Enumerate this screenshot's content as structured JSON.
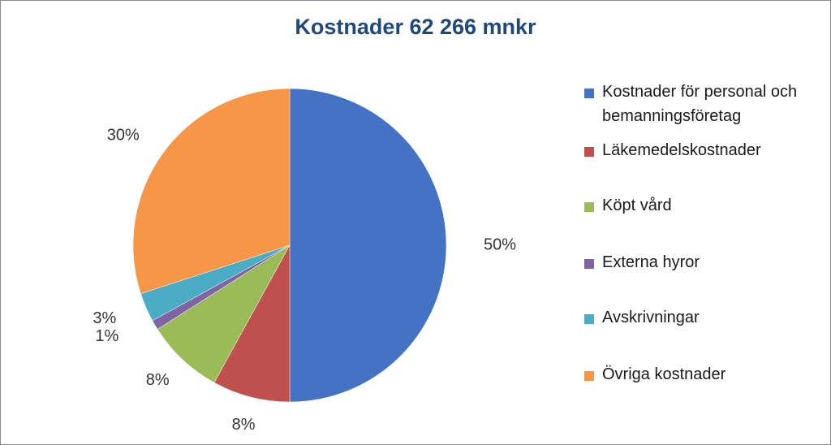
{
  "chart_data": {
    "type": "pie",
    "title": "Kostnader 62 266 mnkr",
    "start_angle_deg": 0,
    "direction": "clockwise",
    "slices": [
      {
        "label": "Kostnader för personal och bemanningsföretag",
        "value": 50,
        "display": "50%",
        "color": "#4472c4"
      },
      {
        "label": "Läkemedelskostnader",
        "value": 8,
        "display": "8%",
        "color": "#c0504d"
      },
      {
        "label": "Köpt vård",
        "value": 8,
        "display": "8%",
        "color": "#9bbb59"
      },
      {
        "label": "Externa hyror",
        "value": 1,
        "display": "1%",
        "color": "#8064a2"
      },
      {
        "label": "Avskrivningar",
        "value": 3,
        "display": "3%",
        "color": "#4bacc6"
      },
      {
        "label": "Övriga kostnader",
        "value": 30,
        "display": "30%",
        "color": "#f79646"
      }
    ],
    "legend_position": "right"
  }
}
